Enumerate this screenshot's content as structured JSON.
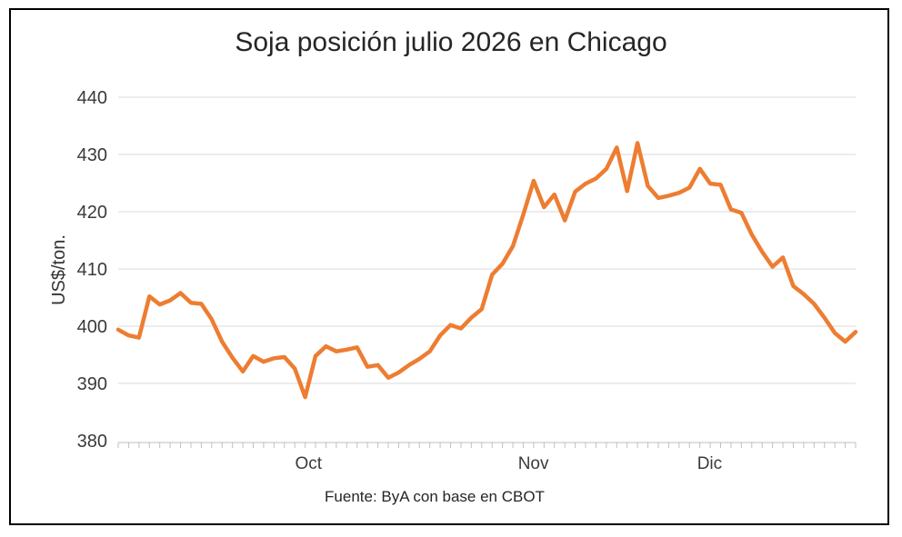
{
  "window": {
    "background": "#ffffff",
    "frame_border_color": "#000000"
  },
  "chart": {
    "title": "Soja posición julio 2026 en Chicago",
    "y_axis_title": "US$/ton.",
    "footer": "Fuente: ByA con base en CBOT",
    "colors": {
      "line": "#ED7D31",
      "gridline": "#D9D9D9",
      "axis_tick": "#BFBFBF",
      "axis_text": "#3a3a3a",
      "title_text": "#262626"
    }
  },
  "chart_data": {
    "type": "line",
    "title": "Soja posición julio 2026 en Chicago",
    "ylabel": "US$/ton.",
    "xlabel": "",
    "ylim": [
      380,
      440
    ],
    "y_ticks": [
      380,
      390,
      400,
      410,
      420,
      430,
      440
    ],
    "grid": "horizontal",
    "legend": "none",
    "x_tick_labels": [
      {
        "label": "Oct",
        "pos": 0.258
      },
      {
        "label": "Nov",
        "pos": 0.563
      },
      {
        "label": "Dic",
        "pos": 0.802
      }
    ],
    "series": [
      {
        "name": "Soja posición julio 2026",
        "color": "#ED7D31",
        "values": [
          399.4,
          398.4,
          398.0,
          405.2,
          403.8,
          404.5,
          405.8,
          404.1,
          403.9,
          401.2,
          397.3,
          394.5,
          392.1,
          394.8,
          393.8,
          394.4,
          394.6,
          392.6,
          387.6,
          394.8,
          396.5,
          395.6,
          395.9,
          396.3,
          392.9,
          393.2,
          391.0,
          391.9,
          393.2,
          394.3,
          395.6,
          398.4,
          400.2,
          399.6,
          401.5,
          403.0,
          409.0,
          410.9,
          414.0,
          419.5,
          425.4,
          420.8,
          423.0,
          418.5,
          423.5,
          424.9,
          425.8,
          427.5,
          431.2,
          423.6,
          432.0,
          424.5,
          422.4,
          422.8,
          423.3,
          424.2,
          427.5,
          424.9,
          424.7,
          420.4,
          419.8,
          416.0,
          413.0,
          410.4,
          412.0,
          407.0,
          405.6,
          403.9,
          401.5,
          398.8,
          397.3,
          399.0
        ]
      }
    ],
    "source": "Fuente: ByA con base en CBOT"
  }
}
